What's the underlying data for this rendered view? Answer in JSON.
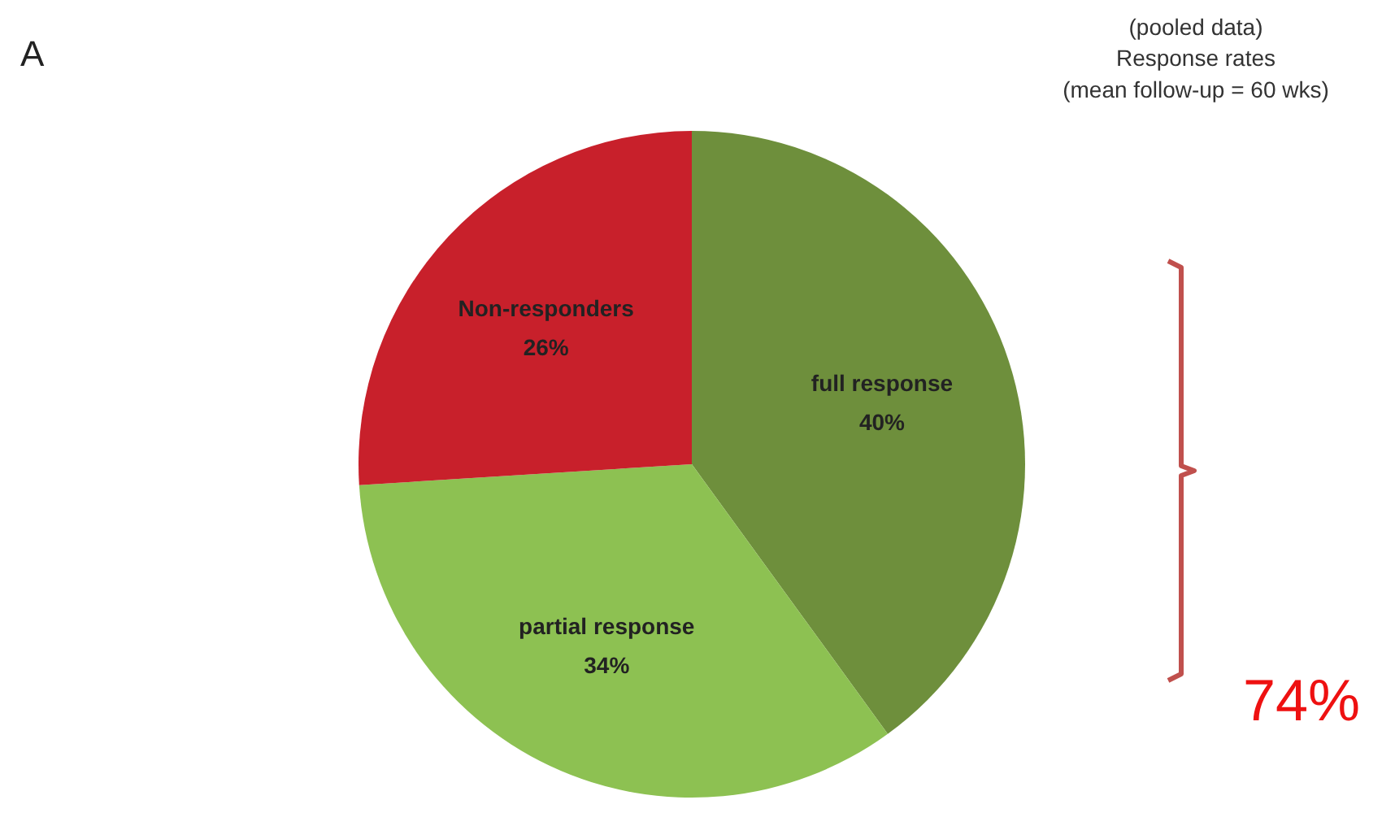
{
  "chart_data": {
    "type": "pie",
    "title": "(pooled data)\nResponse rates\n(mean follow-up = 60 wks)",
    "categories": [
      "full response",
      "partial response",
      "Non-responders"
    ],
    "values": [
      40,
      34,
      26
    ],
    "colors": [
      "#6e8f3c",
      "#8dc152",
      "#c8202b"
    ],
    "value_labels": [
      "40%",
      "34%",
      "26%"
    ],
    "annotations": [
      "A",
      "74%"
    ]
  }
}
